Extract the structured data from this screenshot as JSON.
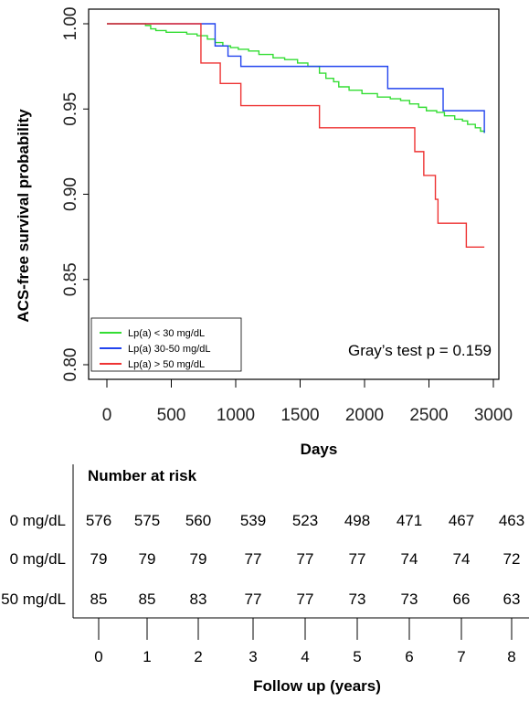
{
  "chart_data": [
    {
      "type": "line",
      "step": true,
      "xlabel": "Days",
      "ylabel": "ACS-free survival probability",
      "xlim": [
        0,
        3000
      ],
      "ylim": [
        0.8,
        1.0
      ],
      "x_ticks": [
        "0",
        "500",
        "1000",
        "1500",
        "2000",
        "2500",
        "3000"
      ],
      "y_ticks": [
        "0.80",
        "0.85",
        "0.90",
        "0.95",
        "1.00"
      ],
      "grid": false,
      "legend_position": "bottom-left",
      "annotation": "Gray’s test p = 0.159",
      "series": [
        {
          "name": "Lp(a) < 30 mg/dL",
          "color": "#33dd33",
          "x": [
            0,
            300,
            340,
            380,
            460,
            620,
            700,
            780,
            840,
            900,
            960,
            1020,
            1100,
            1180,
            1290,
            1380,
            1480,
            1560,
            1650,
            1700,
            1760,
            1800,
            1880,
            1980,
            2100,
            2200,
            2280,
            2350,
            2420,
            2480,
            2560,
            2620,
            2700,
            2760,
            2800,
            2860,
            2900,
            2930
          ],
          "y": [
            1.0,
            0.999,
            0.997,
            0.996,
            0.995,
            0.994,
            0.993,
            0.991,
            0.989,
            0.987,
            0.986,
            0.985,
            0.984,
            0.982,
            0.98,
            0.979,
            0.977,
            0.975,
            0.971,
            0.968,
            0.966,
            0.963,
            0.961,
            0.959,
            0.957,
            0.956,
            0.955,
            0.953,
            0.951,
            0.949,
            0.948,
            0.946,
            0.944,
            0.943,
            0.941,
            0.939,
            0.937,
            0.936
          ]
        },
        {
          "name": "Lp(a) 30-50 mg/dL",
          "color": "#2244ee",
          "x": [
            0,
            840,
            940,
            1040,
            2180,
            2610,
            2930
          ],
          "y": [
            1.0,
            0.987,
            0.981,
            0.975,
            0.962,
            0.949,
            0.936
          ]
        },
        {
          "name": "Lp(a) > 50 mg/dL",
          "color": "#ee3333",
          "x": [
            0,
            730,
            880,
            1040,
            1650,
            2390,
            2460,
            2550,
            2570,
            2790,
            2930
          ],
          "y": [
            1.0,
            0.977,
            0.965,
            0.952,
            0.939,
            0.925,
            0.911,
            0.897,
            0.883,
            0.869,
            0.869
          ]
        }
      ]
    },
    {
      "type": "table",
      "title": "Number at risk",
      "xlabel": "Follow up (years)",
      "years": [
        "0",
        "1",
        "2",
        "3",
        "4",
        "5",
        "6",
        "7",
        "8"
      ],
      "rows": [
        {
          "label": "0 mg/dL",
          "values": [
            "576",
            "575",
            "560",
            "539",
            "523",
            "498",
            "471",
            "467",
            "463"
          ]
        },
        {
          "label": "0 mg/dL",
          "values": [
            "79",
            "79",
            "79",
            "77",
            "77",
            "77",
            "74",
            "74",
            "72"
          ]
        },
        {
          "label": "50 mg/dL",
          "values": [
            "85",
            "85",
            "83",
            "77",
            "77",
            "73",
            "73",
            "66",
            "63"
          ]
        }
      ]
    }
  ]
}
